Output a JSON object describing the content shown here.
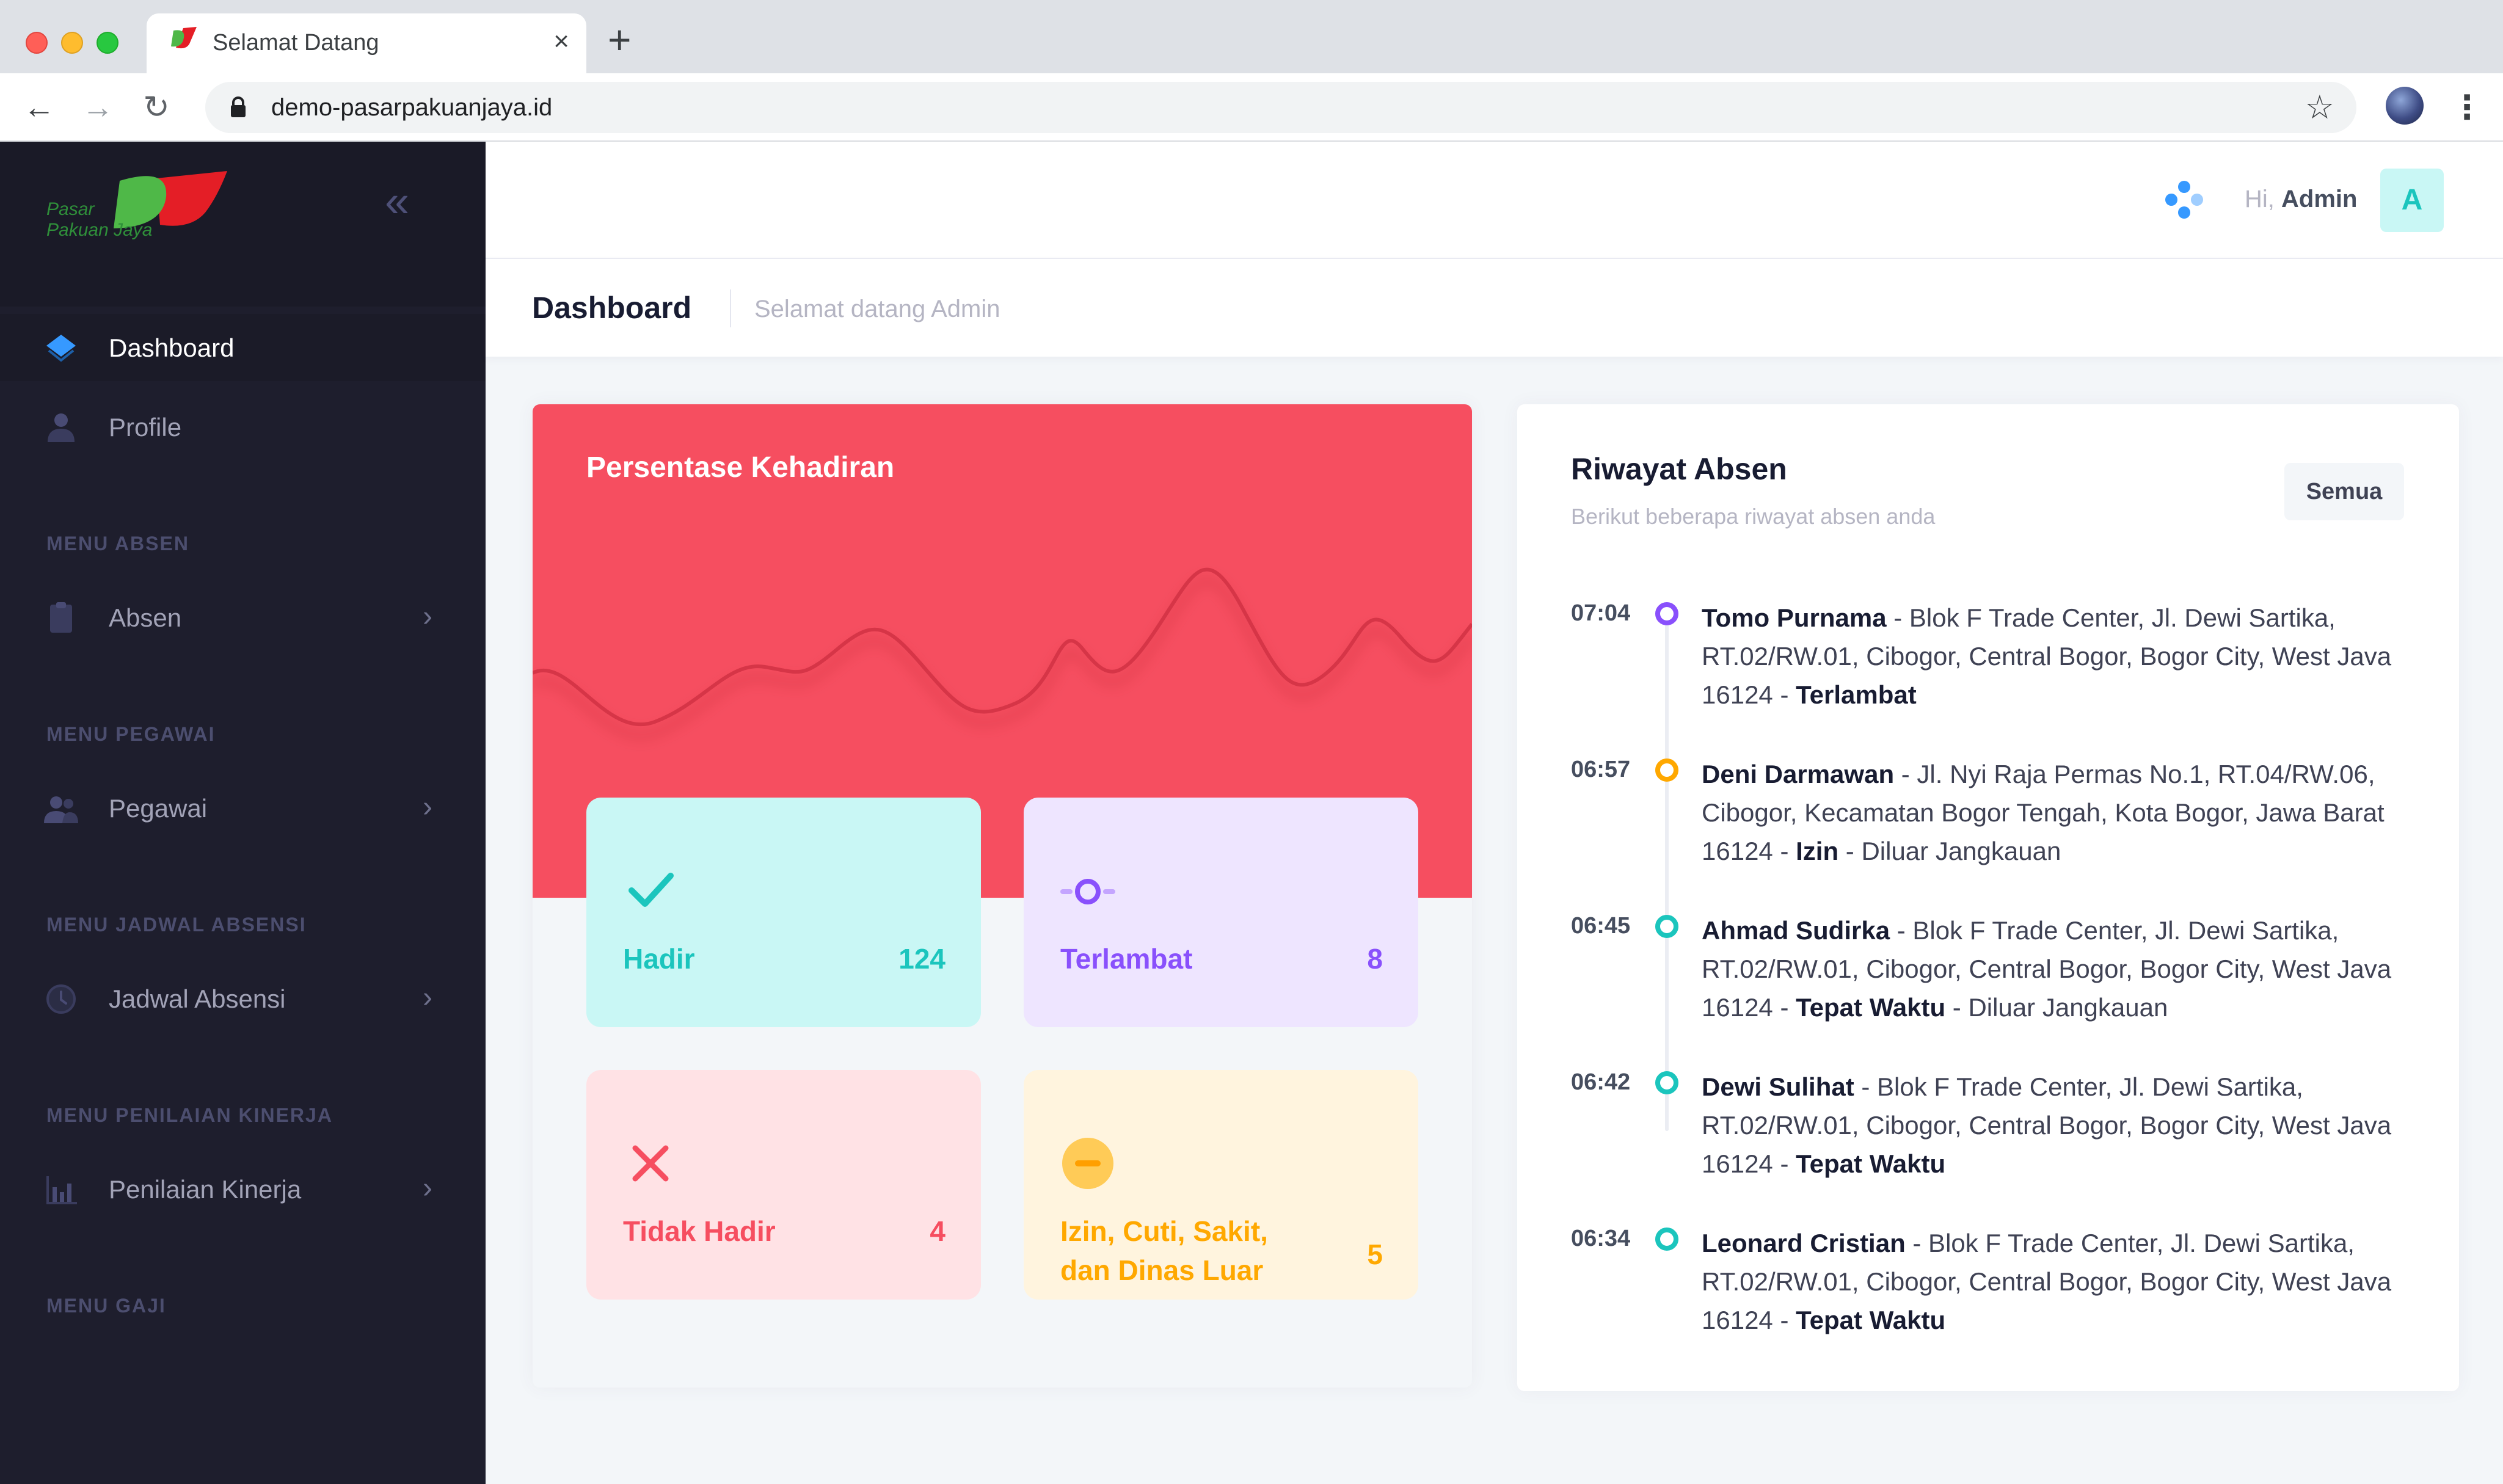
{
  "browser": {
    "tab_title": "Selamat Datang",
    "tab_close": "×",
    "new_tab": "+",
    "url": "demo-pasarpakuanjaya.id",
    "back": "←",
    "forward": "→",
    "reload": "↻",
    "star": "☆",
    "menu": "⋮"
  },
  "brand": {
    "name_line1": "Pasar",
    "name_line2": "Pakuan Jaya",
    "collapse": "«"
  },
  "sidebar": {
    "items": [
      {
        "label": "Dashboard",
        "icon": "layers-icon",
        "active": true
      },
      {
        "label": "Profile",
        "icon": "user-icon"
      },
      {
        "label": "Absen",
        "icon": "clipboard-icon"
      },
      {
        "label": "Pegawai",
        "icon": "users-icon"
      },
      {
        "label": "Jadwal Absensi",
        "icon": "clock-icon"
      },
      {
        "label": "Penilaian Kinerja",
        "icon": "bar-chart-icon"
      }
    ],
    "sections": [
      "MENU ABSEN",
      "MENU PEGAWAI",
      "MENU JADWAL ABSENSI",
      "MENU PENILAIAN KINERJA",
      "MENU GAJI"
    ],
    "chevron": "›"
  },
  "header": {
    "greeting": "Hi,",
    "user_name": "Admin",
    "avatar_letter": "A"
  },
  "subheader": {
    "title": "Dashboard",
    "subtitle": "Selamat datang Admin"
  },
  "attendance": {
    "title": "Persentase Kehadiran",
    "accent": "#f64e60",
    "stats": [
      {
        "label": "Hadir",
        "value": "124"
      },
      {
        "label": "Terlambat",
        "value": "8"
      },
      {
        "label": "Tidak Hadir",
        "value": "4"
      },
      {
        "label": "Izin, Cuti, Sakit, dan Dinas Luar",
        "value": "5"
      }
    ]
  },
  "history": {
    "title": "Riwayat Absen",
    "subtitle": "Berikut beberapa riwayat absen anda",
    "all_button": "Semua",
    "separator": " - ",
    "entries": [
      {
        "time": "07:04",
        "name": "Tomo Purnama",
        "address": "Blok F Trade Center, Jl. Dewi Sartika, RT.02/RW.01, Cibogor, Central Bogor, Bogor City, West Java 16124",
        "status": "Terlambat",
        "note": "",
        "color": "#8950fc"
      },
      {
        "time": "06:57",
        "name": "Deni Darmawan",
        "address": "Jl. Nyi Raja Permas No.1, RT.04/RW.06, Cibogor, Kecamatan Bogor Tengah, Kota Bogor, Jawa Barat 16124",
        "status": "Izin",
        "note": "Diluar Jangkauan",
        "color": "#ffa800"
      },
      {
        "time": "06:45",
        "name": "Ahmad Sudirka",
        "address": "Blok F Trade Center, Jl. Dewi Sartika, RT.02/RW.01, Cibogor, Central Bogor, Bogor City, West Java 16124",
        "status": "Tepat Waktu",
        "note": "Diluar Jangkauan",
        "color": "#1bc5bd"
      },
      {
        "time": "06:42",
        "name": "Dewi Sulihat",
        "address": "Blok F Trade Center, Jl. Dewi Sartika, RT.02/RW.01, Cibogor, Central Bogor, Bogor City, West Java 16124",
        "status": "Tepat Waktu",
        "note": "",
        "color": "#1bc5bd"
      },
      {
        "time": "06:34",
        "name": "Leonard Cristian",
        "address": "Blok F Trade Center, Jl. Dewi Sartika, RT.02/RW.01, Cibogor, Central Bogor, Bogor City, West Java 16124",
        "status": "Tepat Waktu",
        "note": "",
        "color": "#1bc5bd"
      }
    ]
  }
}
